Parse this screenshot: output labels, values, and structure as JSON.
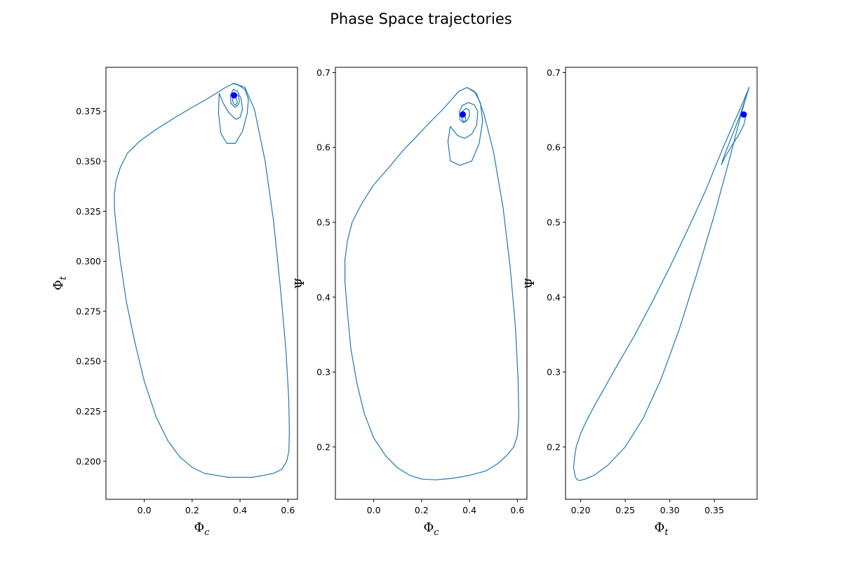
{
  "figure": {
    "title": "Phase Space trajectories",
    "line_color": "#1f77b4",
    "marker_color": "#0000ff"
  },
  "chart_data": [
    {
      "type": "line",
      "xlabel": "Φ_c",
      "ylabel": "Φ_t",
      "xlim": [
        -0.16,
        0.64
      ],
      "ylim": [
        0.181,
        0.397
      ],
      "xticks": [
        0.0,
        0.2,
        0.4,
        0.6
      ],
      "xtick_labels": [
        "0.0",
        "0.2",
        "0.4",
        "0.6"
      ],
      "yticks": [
        0.2,
        0.225,
        0.25,
        0.275,
        0.3,
        0.325,
        0.35,
        0.375
      ],
      "ytick_labels": [
        "0.200",
        "0.225",
        "0.250",
        "0.275",
        "0.300",
        "0.325",
        "0.350",
        "0.375"
      ],
      "grid": false,
      "series": [
        {
          "role": "limit-cycle",
          "x": [
            0.375,
            0.42,
            0.46,
            0.505,
            0.54,
            0.57,
            0.592,
            0.603,
            0.606,
            0.604,
            0.595,
            0.575,
            0.54,
            0.5,
            0.45,
            0.4,
            0.35,
            0.3,
            0.25,
            0.2,
            0.15,
            0.1,
            0.05,
            0.0,
            -0.04,
            -0.075,
            -0.1,
            -0.115,
            -0.124,
            -0.125,
            -0.118,
            -0.1,
            -0.07,
            -0.02,
            0.05,
            0.13,
            0.2,
            0.26,
            0.3,
            0.34,
            0.375
          ],
          "y": [
            0.389,
            0.387,
            0.376,
            0.35,
            0.32,
            0.285,
            0.255,
            0.232,
            0.215,
            0.205,
            0.2,
            0.196,
            0.194,
            0.193,
            0.192,
            0.192,
            0.192,
            0.193,
            0.194,
            0.197,
            0.202,
            0.21,
            0.222,
            0.24,
            0.26,
            0.28,
            0.3,
            0.315,
            0.325,
            0.333,
            0.34,
            0.347,
            0.354,
            0.36,
            0.366,
            0.372,
            0.377,
            0.381,
            0.384,
            0.387,
            0.389
          ]
        },
        {
          "role": "transient-spiral",
          "x": [
            0.38,
            0.385,
            0.388,
            0.387,
            0.38,
            0.372,
            0.368,
            0.37,
            0.378,
            0.392,
            0.398,
            0.39,
            0.378,
            0.362,
            0.36,
            0.372,
            0.39,
            0.405,
            0.41,
            0.4,
            0.382,
            0.355,
            0.33,
            0.313,
            0.31,
            0.32,
            0.345,
            0.38,
            0.41,
            0.43,
            0.435,
            0.42,
            0.395,
            0.37
          ],
          "y": [
            0.382,
            0.381,
            0.38,
            0.379,
            0.378,
            0.379,
            0.381,
            0.383,
            0.384,
            0.383,
            0.38,
            0.378,
            0.377,
            0.379,
            0.383,
            0.386,
            0.385,
            0.381,
            0.376,
            0.372,
            0.371,
            0.374,
            0.379,
            0.384,
            0.374,
            0.364,
            0.359,
            0.359,
            0.365,
            0.374,
            0.381,
            0.386,
            0.388,
            0.389
          ]
        }
      ],
      "marker": {
        "x": 0.375,
        "y": 0.383
      }
    },
    {
      "type": "line",
      "xlabel": "Φ_c",
      "ylabel": "Ψ",
      "xlim": [
        -0.16,
        0.64
      ],
      "ylim": [
        0.13,
        0.707
      ],
      "xticks": [
        0.0,
        0.2,
        0.4,
        0.6
      ],
      "xtick_labels": [
        "0.0",
        "0.2",
        "0.4",
        "0.6"
      ],
      "yticks": [
        0.2,
        0.3,
        0.4,
        0.5,
        0.6,
        0.7
      ],
      "ytick_labels": [
        "0.2",
        "0.3",
        "0.4",
        "0.5",
        "0.6",
        "0.7"
      ],
      "grid": false,
      "series": [
        {
          "role": "limit-cycle",
          "x": [
            0.39,
            0.43,
            0.46,
            0.5,
            0.54,
            0.57,
            0.592,
            0.603,
            0.606,
            0.6,
            0.585,
            0.56,
            0.52,
            0.47,
            0.4,
            0.33,
            0.26,
            0.2,
            0.15,
            0.1,
            0.05,
            0.0,
            -0.04,
            -0.07,
            -0.095,
            -0.11,
            -0.12,
            -0.12,
            -0.11,
            -0.09,
            -0.05,
            0.0,
            0.06,
            0.12,
            0.18,
            0.23,
            0.28,
            0.32,
            0.355,
            0.39
          ],
          "y": [
            0.68,
            0.672,
            0.645,
            0.595,
            0.52,
            0.44,
            0.36,
            0.29,
            0.24,
            0.215,
            0.2,
            0.19,
            0.178,
            0.168,
            0.162,
            0.158,
            0.156,
            0.157,
            0.162,
            0.172,
            0.188,
            0.212,
            0.245,
            0.285,
            0.33,
            0.38,
            0.42,
            0.45,
            0.475,
            0.5,
            0.525,
            0.55,
            0.572,
            0.595,
            0.615,
            0.632,
            0.648,
            0.662,
            0.675,
            0.68
          ]
        },
        {
          "role": "transient-spiral",
          "x": [
            0.37,
            0.378,
            0.384,
            0.384,
            0.378,
            0.37,
            0.366,
            0.37,
            0.385,
            0.398,
            0.4,
            0.39,
            0.375,
            0.36,
            0.358,
            0.37,
            0.395,
            0.42,
            0.435,
            0.43,
            0.41,
            0.38,
            0.35,
            0.32,
            0.31,
            0.32,
            0.36,
            0.41,
            0.44,
            0.455,
            0.445,
            0.42,
            0.39
          ],
          "y": [
            0.645,
            0.643,
            0.64,
            0.636,
            0.634,
            0.637,
            0.642,
            0.648,
            0.652,
            0.65,
            0.642,
            0.636,
            0.633,
            0.637,
            0.648,
            0.656,
            0.66,
            0.657,
            0.648,
            0.63,
            0.618,
            0.612,
            0.616,
            0.628,
            0.608,
            0.582,
            0.576,
            0.582,
            0.605,
            0.635,
            0.66,
            0.675,
            0.68
          ]
        }
      ],
      "marker": {
        "x": 0.372,
        "y": 0.644
      }
    },
    {
      "type": "line",
      "xlabel": "Φ_t",
      "ylabel": "Ψ",
      "xlim": [
        0.183,
        0.398
      ],
      "ylim": [
        0.13,
        0.707
      ],
      "xticks": [
        0.2,
        0.25,
        0.3,
        0.35
      ],
      "xtick_labels": [
        "0.20",
        "0.25",
        "0.30",
        "0.35"
      ],
      "yticks": [
        0.2,
        0.3,
        0.4,
        0.5,
        0.6,
        0.7
      ],
      "ytick_labels": [
        "0.2",
        "0.3",
        "0.4",
        "0.5",
        "0.6",
        "0.7"
      ],
      "grid": false,
      "series": [
        {
          "role": "limit-cycle",
          "x": [
            0.389,
            0.385,
            0.378,
            0.366,
            0.35,
            0.33,
            0.31,
            0.29,
            0.27,
            0.25,
            0.23,
            0.215,
            0.205,
            0.199,
            0.196,
            0.194,
            0.192,
            0.193,
            0.195,
            0.2,
            0.207,
            0.215,
            0.225,
            0.24,
            0.26,
            0.28,
            0.3,
            0.32,
            0.34,
            0.36,
            0.372,
            0.382,
            0.389
          ],
          "y": [
            0.68,
            0.665,
            0.635,
            0.58,
            0.51,
            0.43,
            0.355,
            0.29,
            0.238,
            0.2,
            0.175,
            0.162,
            0.157,
            0.155,
            0.156,
            0.16,
            0.172,
            0.185,
            0.2,
            0.218,
            0.236,
            0.254,
            0.275,
            0.307,
            0.348,
            0.393,
            0.44,
            0.49,
            0.542,
            0.6,
            0.633,
            0.66,
            0.68
          ]
        },
        {
          "role": "transient",
          "x": [
            0.383,
            0.385,
            0.383,
            0.378,
            0.37,
            0.362,
            0.358,
            0.36,
            0.368,
            0.378,
            0.385,
            0.389
          ],
          "y": [
            0.644,
            0.64,
            0.63,
            0.618,
            0.603,
            0.587,
            0.577,
            0.585,
            0.61,
            0.64,
            0.665,
            0.68
          ]
        }
      ],
      "marker": {
        "x": 0.383,
        "y": 0.644
      }
    }
  ]
}
